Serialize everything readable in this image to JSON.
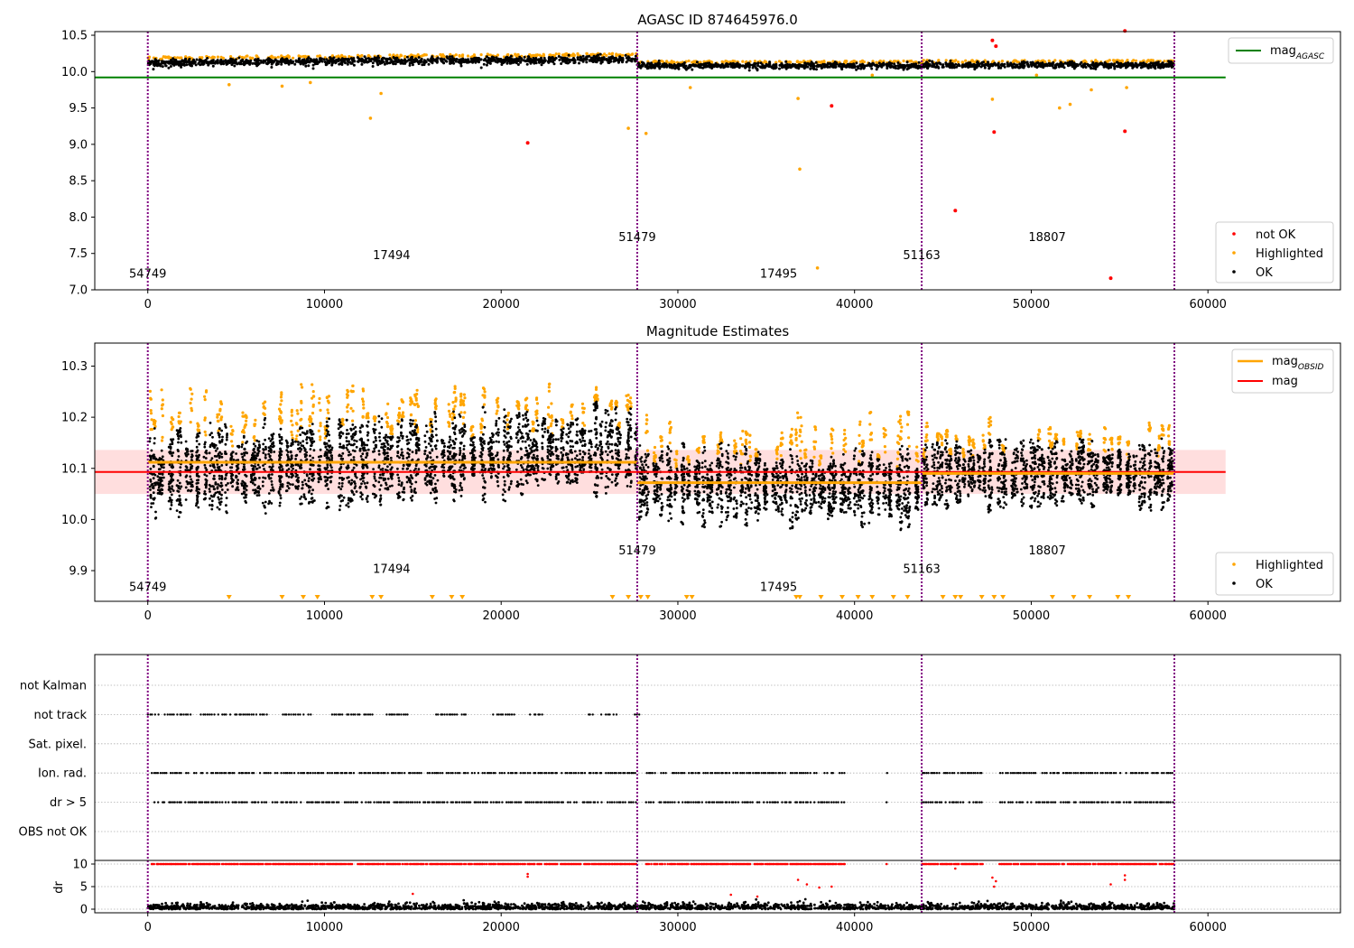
{
  "chart_data": [
    {
      "id": "agasc",
      "type": "scatter",
      "title": "AGASC ID 874645976.0",
      "xlim": [
        -3000,
        67500
      ],
      "ylim": [
        7.0,
        10.55
      ],
      "xticks": [
        0,
        10000,
        20000,
        30000,
        40000,
        50000,
        60000
      ],
      "yticks": [
        7.0,
        7.5,
        8.0,
        8.5,
        9.0,
        9.5,
        10.0,
        10.5
      ],
      "ytick_format": 1,
      "colors": {
        "ok": "#000000",
        "highlighted": "#ffa500",
        "not_ok": "#ff0000",
        "agasc_line": "#008000",
        "vline": "#800080"
      },
      "vlines": [
        0,
        27700,
        43800,
        58100
      ],
      "mag_agasc": 9.92,
      "mag_agasc_xrange": [
        -3000,
        61000
      ],
      "obs_labels": [
        {
          "text": "54749",
          "x": 0,
          "y": 7.17
        },
        {
          "text": "17494",
          "x": 13800,
          "y": 7.42
        },
        {
          "text": "51479",
          "x": 27700,
          "y": 7.67
        },
        {
          "text": "17495",
          "x": 35700,
          "y": 7.17
        },
        {
          "text": "51163",
          "x": 43800,
          "y": 7.42
        },
        {
          "text": "18807",
          "x": 50900,
          "y": 7.67
        }
      ],
      "ok_segments": [
        {
          "x0": 0,
          "x1": 27700,
          "y0": 10.12,
          "y1": 10.17,
          "spread": 0.05
        },
        {
          "x0": 27700,
          "x1": 43800,
          "y0": 10.08,
          "y1": 10.08,
          "spread": 0.04
        },
        {
          "x0": 43800,
          "x1": 58100,
          "y0": 10.09,
          "y1": 10.09,
          "spread": 0.04
        }
      ],
      "highlighted_points": [
        [
          12600,
          9.36
        ],
        [
          13200,
          9.7
        ],
        [
          27200,
          9.22
        ],
        [
          28200,
          9.15
        ],
        [
          30700,
          9.78
        ],
        [
          36800,
          9.63
        ],
        [
          36900,
          8.66
        ],
        [
          37900,
          7.3
        ],
        [
          41000,
          9.95
        ],
        [
          47800,
          9.62
        ],
        [
          50300,
          9.95
        ],
        [
          51600,
          9.5
        ],
        [
          52200,
          9.55
        ],
        [
          53400,
          9.75
        ],
        [
          55400,
          9.78
        ],
        [
          4600,
          9.82
        ],
        [
          7600,
          9.8
        ],
        [
          9200,
          9.85
        ]
      ],
      "not_ok_points": [
        [
          21500,
          9.02
        ],
        [
          38700,
          9.53
        ],
        [
          45700,
          8.09
        ],
        [
          47800,
          10.43
        ],
        [
          47900,
          9.17
        ],
        [
          48000,
          10.35
        ],
        [
          54500,
          7.16
        ],
        [
          55300,
          9.18
        ],
        [
          55300,
          10.56
        ]
      ],
      "legend_mag": {
        "base": "mag",
        "sub": "AGASC"
      },
      "legend_points": [
        "not OK",
        "Highlighted",
        "OK"
      ]
    },
    {
      "id": "mag_estimates",
      "type": "scatter",
      "title": "Magnitude Estimates",
      "xlim": [
        -3000,
        67500
      ],
      "ylim": [
        9.84,
        10.345
      ],
      "xticks": [
        0,
        10000,
        20000,
        30000,
        40000,
        50000,
        60000
      ],
      "yticks": [
        9.9,
        10.0,
        10.1,
        10.2,
        10.3
      ],
      "ytick_format": 1,
      "colors": {
        "ok": "#000000",
        "highlighted": "#ffa500",
        "obsid_line": "#ffa500",
        "mag_line": "#ff0000",
        "band": "#ffb6b6",
        "vline": "#800080"
      },
      "vlines": [
        0,
        27700,
        43800,
        58100
      ],
      "mag": 10.093,
      "mag_band": [
        10.05,
        10.136
      ],
      "mag_xrange": [
        -3000,
        61000
      ],
      "mag_obsid": [
        {
          "x0": 0,
          "x1": 27700,
          "y": 10.112
        },
        {
          "x0": 27700,
          "x1": 43800,
          "y": 10.072
        },
        {
          "x0": 43800,
          "x1": 58100,
          "y": 10.09
        }
      ],
      "obs_labels": [
        {
          "text": "54749",
          "x": 0,
          "y": 9.86
        },
        {
          "text": "17494",
          "x": 13800,
          "y": 9.896
        },
        {
          "text": "51479",
          "x": 27700,
          "y": 9.932
        },
        {
          "text": "17495",
          "x": 35700,
          "y": 9.86
        },
        {
          "text": "51163",
          "x": 43800,
          "y": 9.896
        },
        {
          "text": "18807",
          "x": 50900,
          "y": 9.932
        }
      ],
      "segments": [
        {
          "x0": 0,
          "x1": 27700,
          "center0": 10.09,
          "center1": 10.14,
          "half": 0.07,
          "hl_top": 10.26
        },
        {
          "x0": 27700,
          "x1": 43800,
          "center0": 10.07,
          "center1": 10.06,
          "half": 0.06,
          "hl_top": 10.21
        },
        {
          "x0": 43800,
          "x1": 58100,
          "center0": 10.09,
          "center1": 10.09,
          "half": 0.055,
          "hl_top": 10.2
        }
      ],
      "down_markers_x": [
        4600,
        7600,
        8800,
        9600,
        12700,
        13200,
        16100,
        17200,
        17800,
        26300,
        27200,
        27900,
        28300,
        30500,
        30800,
        36700,
        36900,
        38100,
        39300,
        40200,
        41000,
        42200,
        43000,
        45000,
        45700,
        46000,
        47200,
        47900,
        48400,
        51200,
        52400,
        53300,
        54900,
        55500
      ],
      "legend_obsid": {
        "base": "mag",
        "sub": "OBSID"
      },
      "legend_mag": "mag",
      "legend_points": [
        "Highlighted",
        "OK"
      ]
    },
    {
      "id": "flags",
      "type": "scatter",
      "xlim": [
        -3000,
        67500
      ],
      "categories": [
        "not Kalman",
        "not track",
        "Sat. pixel.",
        "Ion. rad.",
        "dr > 5",
        "OBS not OK"
      ],
      "colors": {
        "flag": "#000000",
        "vline": "#800080",
        "grid": "#b0b0b0"
      },
      "vlines": [
        0,
        27700,
        43800,
        58100
      ],
      "flag_rows": [
        {
          "category": "not track",
          "ranges": [
            [
              0,
              2500
            ],
            [
              3000,
              6800
            ],
            [
              7600,
              9300
            ],
            [
              10400,
              12800
            ],
            [
              13500,
              14800
            ],
            [
              16300,
              18200
            ],
            [
              19500,
              20800
            ],
            [
              21600,
              22400
            ],
            [
              24900,
              26600
            ],
            [
              27500,
              27900
            ]
          ]
        },
        {
          "category": "Ion. rad.",
          "ranges": [
            [
              200,
              27700
            ],
            [
              28200,
              39500
            ],
            [
              41800,
              41900
            ],
            [
              43800,
              47300
            ],
            [
              48200,
              58100
            ]
          ]
        },
        {
          "category": "dr > 5",
          "ranges": [
            [
              200,
              27700
            ],
            [
              28200,
              39500
            ],
            [
              41800,
              41900
            ],
            [
              43800,
              47300
            ],
            [
              48200,
              58100
            ]
          ]
        }
      ]
    },
    {
      "id": "dr",
      "type": "scatter",
      "xlim": [
        -3000,
        67500
      ],
      "ylim": [
        -0.8,
        10.8
      ],
      "ylabel": "dr",
      "yticks": [
        0,
        5,
        10
      ],
      "xticks": [
        0,
        10000,
        20000,
        30000,
        40000,
        50000,
        60000
      ],
      "colors": {
        "ok": "#000000",
        "not_ok": "#ff0000",
        "vline": "#800080",
        "grid": "#b0b0b0"
      },
      "vlines": [
        0,
        27700,
        43800,
        58100
      ],
      "dr10_ranges": [
        [
          200,
          27700
        ],
        [
          28200,
          39500
        ],
        [
          41800,
          41900
        ],
        [
          43800,
          47300
        ],
        [
          48200,
          58100
        ]
      ],
      "dr_scatter": [
        [
          21500,
          7.2
        ],
        [
          21500,
          7.8
        ],
        [
          36800,
          6.5
        ],
        [
          37300,
          5.5
        ],
        [
          38000,
          4.8
        ],
        [
          38700,
          5.0
        ],
        [
          47800,
          7.0
        ],
        [
          47900,
          5.0
        ],
        [
          48000,
          6.2
        ],
        [
          55300,
          7.5
        ],
        [
          55300,
          6.5
        ],
        [
          54500,
          5.5
        ],
        [
          45700,
          9.0
        ],
        [
          33000,
          3.2
        ],
        [
          34500,
          2.8
        ],
        [
          15000,
          3.4
        ]
      ],
      "ok_band": [
        0,
        2.2
      ]
    }
  ]
}
